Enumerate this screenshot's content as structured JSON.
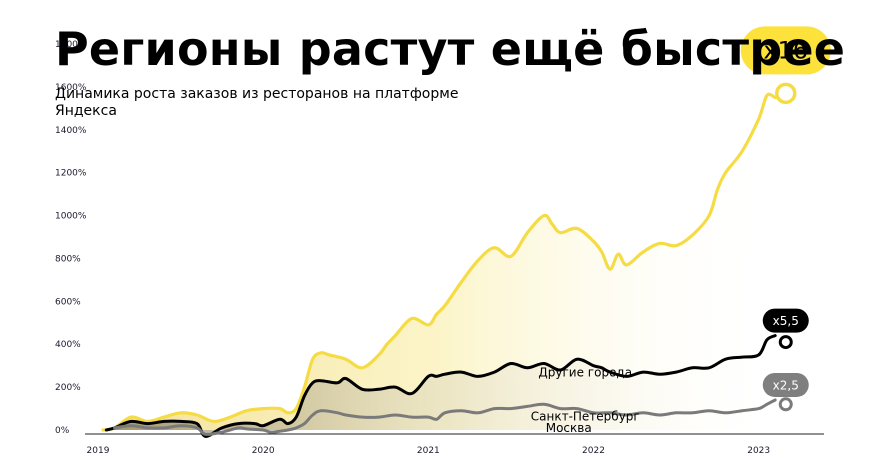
{
  "header": {
    "title": "Регионы растут ещё быстрее",
    "subtitle": "Динамика роста заказов из ресторанов на платформе Яндекса"
  },
  "colors": {
    "others": "#f5dc45",
    "spb": "#000000",
    "moscow": "#7a7a7a",
    "badge_yellow": "#fce23b",
    "badge_black": "#000000",
    "badge_gray": "#7f7f7f"
  },
  "chart_data": {
    "type": "line",
    "title": "Регионы растут ещё быстрее",
    "subtitle": "Динамика роста заказов из ресторанов на платформе Яндекса",
    "x_ticks": [
      "2019",
      "2020",
      "2021",
      "2022",
      "2023"
    ],
    "y_ticks": [
      "0%",
      "200%",
      "400%",
      "600%",
      "800%",
      "1000%",
      "1200%",
      "1400%",
      "1600%",
      "1800%"
    ],
    "xlim": [
      2019.0,
      2023.45
    ],
    "ylim": [
      0,
      1800
    ],
    "grid": false,
    "series": [
      {
        "name": "Другие города",
        "color": "#f5dc45",
        "badge": "x16",
        "x": [
          2019.03,
          2019.1,
          2019.2,
          2019.3,
          2019.4,
          2019.5,
          2019.6,
          2019.7,
          2019.8,
          2019.9,
          2020.0,
          2020.1,
          2020.15,
          2020.2,
          2020.25,
          2020.3,
          2020.35,
          2020.4,
          2020.5,
          2020.6,
          2020.7,
          2020.75,
          2020.8,
          2020.9,
          2021.0,
          2021.05,
          2021.1,
          2021.2,
          2021.3,
          2021.4,
          2021.5,
          2021.6,
          2021.7,
          2021.75,
          2021.8,
          2021.9,
          2022.0,
          2022.05,
          2022.1,
          2022.15,
          2022.2,
          2022.3,
          2022.4,
          2022.5,
          2022.6,
          2022.7,
          2022.75,
          2022.8,
          2022.9,
          2023.0,
          2023.05,
          2023.1
        ],
        "values": [
          0,
          10,
          60,
          40,
          60,
          80,
          70,
          40,
          60,
          90,
          100,
          100,
          80,
          100,
          200,
          330,
          360,
          350,
          330,
          290,
          350,
          400,
          440,
          520,
          490,
          540,
          580,
          690,
          790,
          850,
          810,
          920,
          1000,
          960,
          920,
          940,
          880,
          830,
          750,
          820,
          770,
          830,
          870,
          860,
          910,
          1000,
          1120,
          1200,
          1300,
          1450,
          1560,
          1550
        ]
      },
      {
        "name": "Санкт-Петербург",
        "color": "#000000",
        "badge": "x5,5",
        "x": [
          2019.05,
          2019.1,
          2019.2,
          2019.3,
          2019.4,
          2019.5,
          2019.6,
          2019.65,
          2019.75,
          2019.85,
          2019.95,
          2020.0,
          2020.1,
          2020.15,
          2020.2,
          2020.25,
          2020.3,
          2020.35,
          2020.45,
          2020.5,
          2020.6,
          2020.7,
          2020.8,
          2020.9,
          2021.0,
          2021.05,
          2021.1,
          2021.2,
          2021.3,
          2021.4,
          2021.5,
          2021.6,
          2021.7,
          2021.8,
          2021.9,
          2022.0,
          2022.05,
          2022.1,
          2022.2,
          2022.3,
          2022.4,
          2022.5,
          2022.6,
          2022.7,
          2022.8,
          2022.9,
          2023.0,
          2023.05,
          2023.1
        ],
        "values": [
          0,
          10,
          40,
          30,
          40,
          40,
          30,
          -30,
          10,
          30,
          30,
          20,
          50,
          30,
          60,
          160,
          220,
          230,
          220,
          240,
          190,
          190,
          200,
          170,
          250,
          250,
          260,
          270,
          250,
          270,
          310,
          290,
          310,
          280,
          330,
          300,
          290,
          270,
          250,
          270,
          260,
          270,
          290,
          290,
          330,
          340,
          350,
          420,
          440
        ]
      },
      {
        "name": "Москва",
        "color": "#7a7a7a",
        "badge": "x2,5",
        "x": [
          2019.1,
          2019.2,
          2019.3,
          2019.4,
          2019.5,
          2019.6,
          2019.65,
          2019.75,
          2019.85,
          2019.9,
          2020.0,
          2020.05,
          2020.15,
          2020.2,
          2020.25,
          2020.3,
          2020.35,
          2020.45,
          2020.5,
          2020.6,
          2020.7,
          2020.8,
          2020.9,
          2021.0,
          2021.05,
          2021.1,
          2021.2,
          2021.3,
          2021.4,
          2021.5,
          2021.6,
          2021.7,
          2021.8,
          2021.9,
          2022.0,
          2022.1,
          2022.2,
          2022.3,
          2022.4,
          2022.5,
          2022.6,
          2022.7,
          2022.8,
          2022.9,
          2023.0,
          2023.05,
          2023.1
        ],
        "values": [
          10,
          20,
          10,
          10,
          20,
          10,
          -20,
          -10,
          10,
          5,
          0,
          -10,
          0,
          10,
          30,
          70,
          90,
          80,
          70,
          60,
          60,
          70,
          60,
          60,
          50,
          80,
          90,
          80,
          100,
          100,
          110,
          120,
          100,
          100,
          80,
          80,
          70,
          80,
          70,
          80,
          80,
          90,
          80,
          90,
          100,
          120,
          140
        ]
      }
    ]
  }
}
